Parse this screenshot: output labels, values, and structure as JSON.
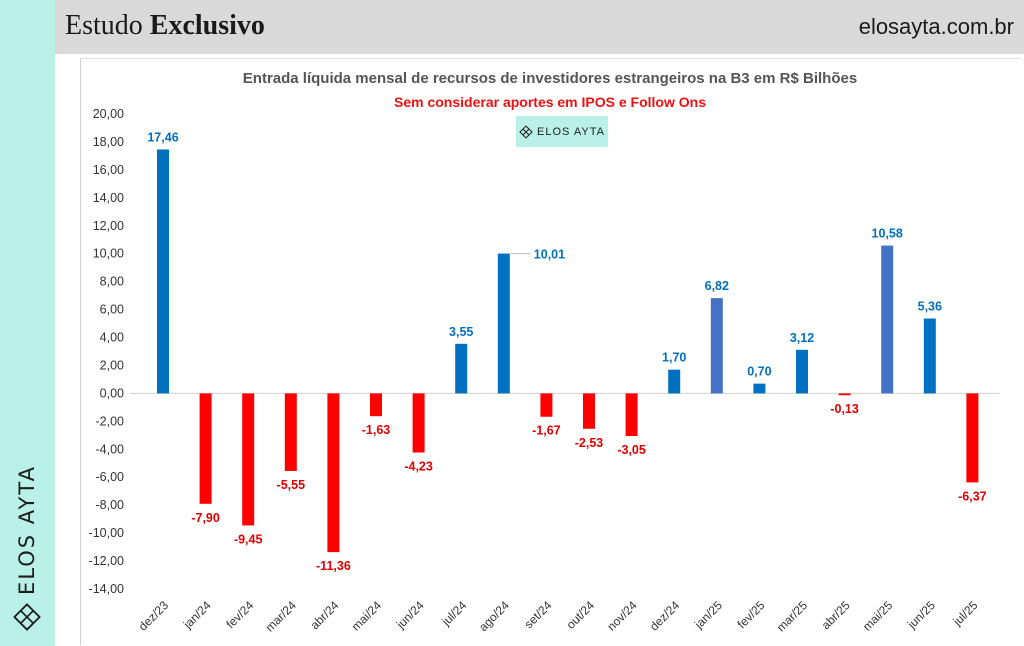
{
  "header": {
    "title_light": "Estudo ",
    "title_bold": "Exclusivo",
    "site": "elosayta.com.br"
  },
  "sidebar": {
    "brand": "ELOS AYTA"
  },
  "badge": {
    "label": "ELOS AYTA"
  },
  "colors": {
    "positive": "#0070c0",
    "positive_alt": "#4472c4",
    "negative": "#ff0000",
    "sidebar": "#b9f0e8",
    "header": "#d9d9d9"
  },
  "chart_data": {
    "type": "bar",
    "title": "Entrada líquida mensal de recursos de investidores estrangeiros na B3 em R$ Bilhões",
    "subtitle": "Sem considerar aportes em IPOS e Follow Ons",
    "categories": [
      "dez/23",
      "jan/24",
      "fev/24",
      "mar/24",
      "abr/24",
      "mai/24",
      "jun/24",
      "jul/24",
      "ago/24",
      "set/24",
      "out/24",
      "nov/24",
      "dez/24",
      "jan/25",
      "fev/25",
      "mar/25",
      "abr/25",
      "mai/25",
      "jun/25",
      "jul/25"
    ],
    "values": [
      17.46,
      -7.9,
      -9.45,
      -5.55,
      -11.36,
      -1.63,
      -4.23,
      3.55,
      10.01,
      -1.67,
      -2.53,
      -3.05,
      1.7,
      6.82,
      0.7,
      3.12,
      -0.13,
      10.58,
      5.36,
      -6.37
    ],
    "value_labels": [
      "17,46",
      "-7,90",
      "-9,45",
      "-5,55",
      "-11,36",
      "-1,63",
      "-4,23",
      "3,55",
      "10,01",
      "-1,67",
      "-2,53",
      "-3,05",
      "1,70",
      "6,82",
      "0,70",
      "3,12",
      "-0,13",
      "10,58",
      "5,36",
      "-6,37"
    ],
    "y_ticks": [
      "20,00",
      "18,00",
      "16,00",
      "14,00",
      "12,00",
      "10,00",
      "8,00",
      "6,00",
      "4,00",
      "2,00",
      "0,00",
      "-2,00",
      "-4,00",
      "-6,00",
      "-8,00",
      "-10,00",
      "-12,00",
      "-14,00"
    ],
    "ylim": [
      -14,
      20
    ],
    "grid": false,
    "legend": "none"
  }
}
